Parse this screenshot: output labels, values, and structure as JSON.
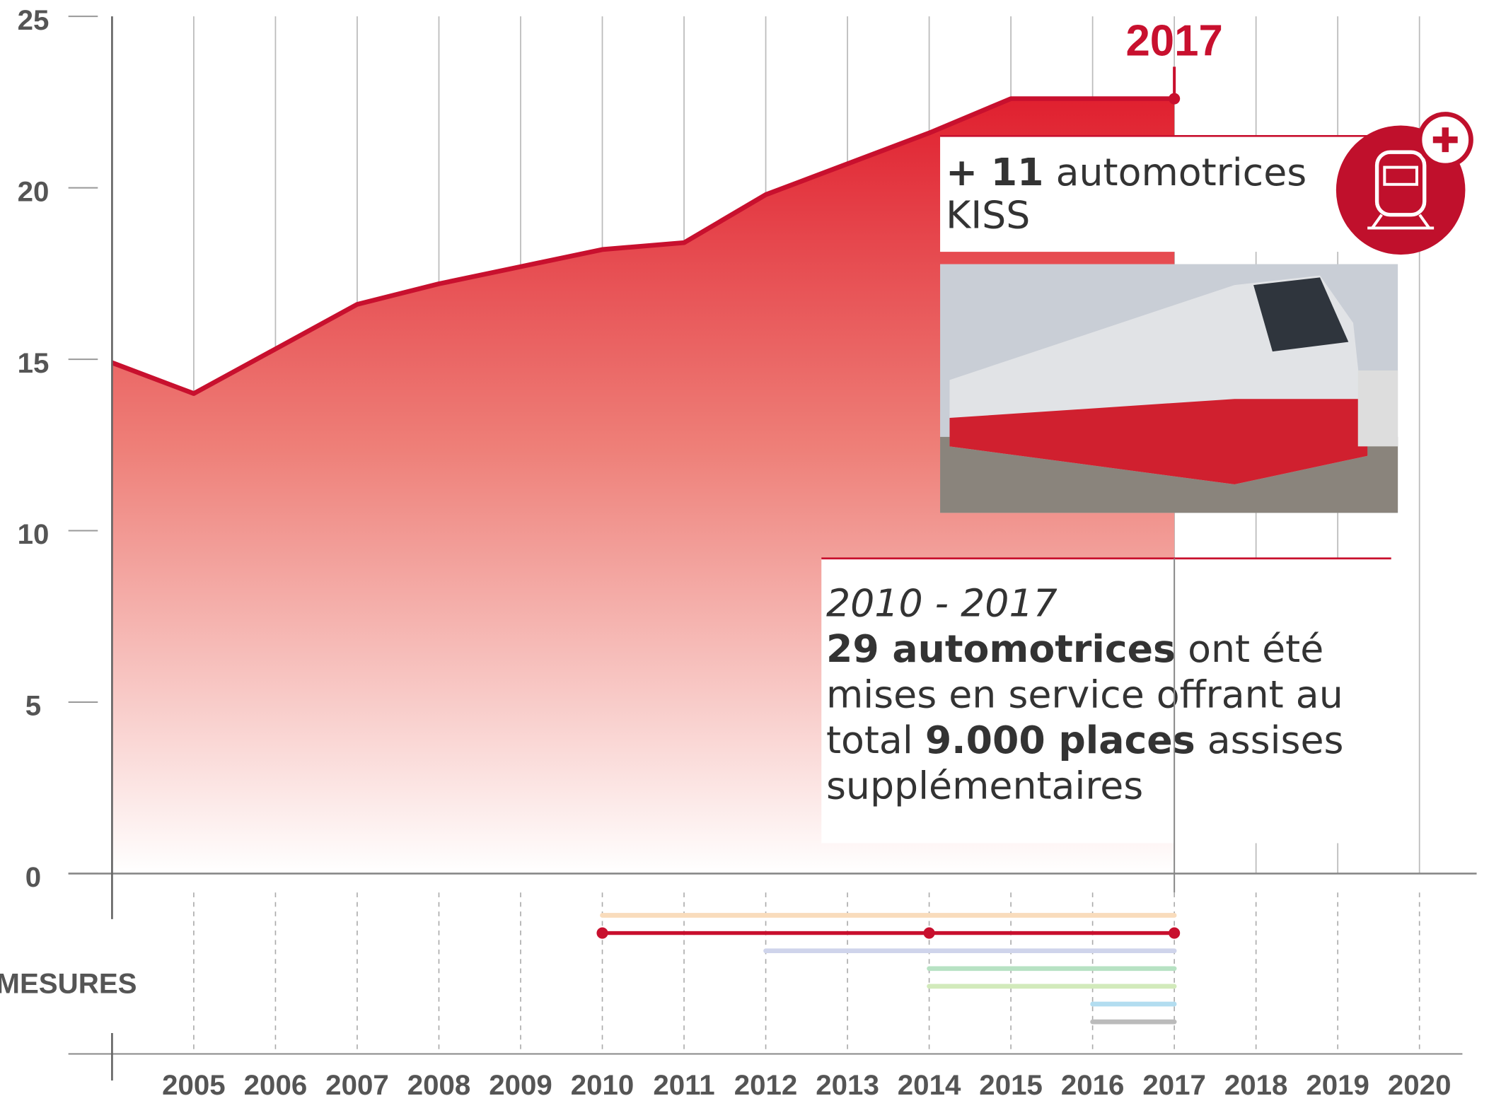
{
  "chart_data": {
    "type": "area",
    "x": [
      2004,
      2005,
      2006,
      2007,
      2008,
      2009,
      2010,
      2011,
      2012,
      2013,
      2014,
      2015,
      2016,
      2017
    ],
    "series": [
      {
        "color": "#c8102e",
        "values": [
          14.9,
          14.0,
          15.3,
          16.6,
          17.2,
          17.7,
          18.2,
          18.4,
          19.8,
          20.7,
          21.6,
          22.6,
          22.6,
          22.6
        ]
      }
    ],
    "xlim": [
      2004,
      2020.7
    ],
    "xticks": [
      2005,
      2006,
      2007,
      2008,
      2009,
      2010,
      2011,
      2012,
      2013,
      2014,
      2015,
      2016,
      2017,
      2018,
      2019,
      2020
    ],
    "ylim": [
      0,
      25
    ],
    "yticks": [
      0,
      5,
      10,
      15,
      20,
      25
    ],
    "grid": true,
    "highlight": {
      "x": 2017,
      "label": "2017"
    },
    "measures_label": "MESURES",
    "measures": [
      {
        "start": 2010,
        "end": 2017,
        "color": "#f9dcbc"
      },
      {
        "start": 2010,
        "end": 2017,
        "color": "#c8102e",
        "points": [
          2010,
          2014,
          2017
        ]
      },
      {
        "start": 2012,
        "end": 2017,
        "color": "#cfd4eb"
      },
      {
        "start": 2014,
        "end": 2017,
        "color": "#b7e2c3"
      },
      {
        "start": 2014,
        "end": 2017,
        "color": "#d2eabb"
      },
      {
        "start": 2016,
        "end": 2017,
        "color": "#b3ddf0"
      },
      {
        "start": 2016,
        "end": 2017,
        "color": "#bbbbbb"
      }
    ],
    "annotations": {
      "kiss_bold": "+ 11",
      "kiss_text": "automotrices KISS",
      "period": "2010 - 2017",
      "summary_bold1": "29 automotrices",
      "summary_text1": "ont été mises en service offrant au total",
      "summary_bold2": "9.000 places",
      "summary_text2": "assises supplémentaires"
    }
  }
}
